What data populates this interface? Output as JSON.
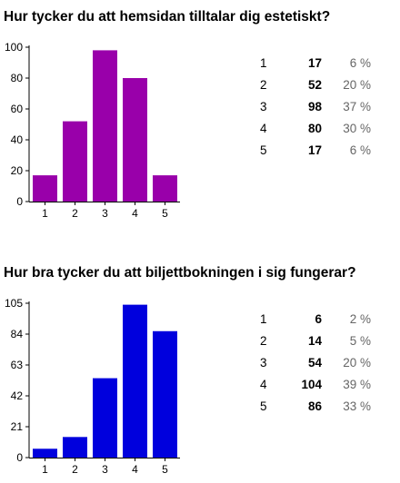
{
  "chart_data": [
    {
      "type": "bar",
      "title": "Hur tycker du att hemsidan tilltalar dig estetiskt?",
      "categories": [
        "1",
        "2",
        "3",
        "4",
        "5"
      ],
      "values": [
        17,
        52,
        98,
        80,
        17
      ],
      "percents": [
        "6 %",
        "20 %",
        "37 %",
        "30 %",
        "6 %"
      ],
      "yticks": [
        0,
        20,
        40,
        60,
        80,
        100
      ],
      "ylim": [
        0,
        100
      ],
      "color": "#9900aa"
    },
    {
      "type": "bar",
      "title": "Hur bra tycker du att biljettbokningen i sig fungerar?",
      "categories": [
        "1",
        "2",
        "3",
        "4",
        "5"
      ],
      "values": [
        6,
        14,
        54,
        104,
        86
      ],
      "percents": [
        "2 %",
        "5 %",
        "20 %",
        "39 %",
        "33 %"
      ],
      "yticks": [
        0,
        21,
        42,
        63,
        84,
        105
      ],
      "ylim": [
        0,
        105
      ],
      "color": "#0000dd"
    }
  ]
}
